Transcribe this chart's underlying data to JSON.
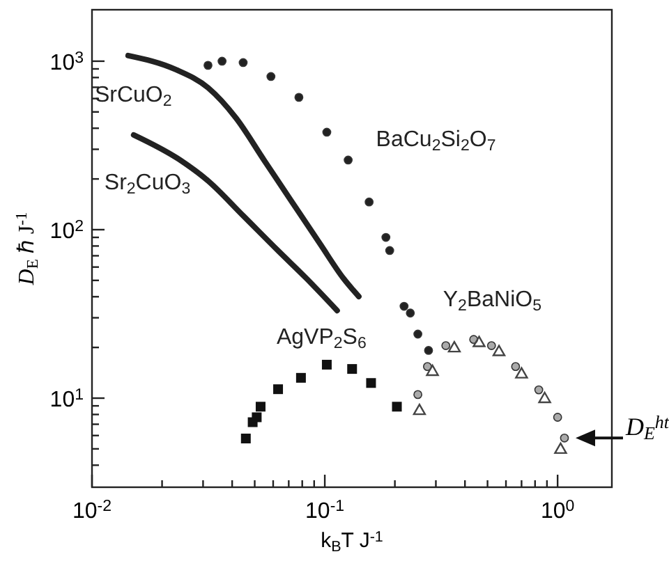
{
  "chart_data": {
    "type": "scatter",
    "xlabel": "k$_{B}$T J$^{-1}$",
    "ylabel": "D$_{E}$ ℏ J$^{-1}$",
    "log": "xy",
    "grid": false,
    "xlim": [
      0.01,
      1.71
    ],
    "ylim": [
      2.96,
      2020
    ],
    "xticks": [
      {
        "value": 0.01,
        "label": "10$^{-2}$"
      },
      {
        "value": 0.02,
        "label": null
      },
      {
        "value": 0.03,
        "label": null
      },
      {
        "value": 0.04,
        "label": null
      },
      {
        "value": 0.05,
        "label": null
      },
      {
        "value": 0.06,
        "label": null
      },
      {
        "value": 0.07,
        "label": null
      },
      {
        "value": 0.08,
        "label": null
      },
      {
        "value": 0.09,
        "label": null
      },
      {
        "value": 0.1,
        "label": "10$^{-1}$"
      },
      {
        "value": 0.2,
        "label": null
      },
      {
        "value": 0.3,
        "label": null
      },
      {
        "value": 0.4,
        "label": null
      },
      {
        "value": 0.5,
        "label": null
      },
      {
        "value": 0.6,
        "label": null
      },
      {
        "value": 0.7,
        "label": null
      },
      {
        "value": 0.8,
        "label": null
      },
      {
        "value": 0.9,
        "label": null
      },
      {
        "value": 1,
        "label": "10$^{0}$"
      }
    ],
    "yticks": [
      {
        "value": 4,
        "label": null
      },
      {
        "value": 5,
        "label": null
      },
      {
        "value": 6,
        "label": null
      },
      {
        "value": 7,
        "label": null
      },
      {
        "value": 8,
        "label": null
      },
      {
        "value": 9,
        "label": null
      },
      {
        "value": 10,
        "label": "10$^{1}$"
      },
      {
        "value": 20,
        "label": null
      },
      {
        "value": 30,
        "label": null
      },
      {
        "value": 40,
        "label": null
      },
      {
        "value": 50,
        "label": null
      },
      {
        "value": 60,
        "label": null
      },
      {
        "value": 70,
        "label": null
      },
      {
        "value": 80,
        "label": null
      },
      {
        "value": 90,
        "label": null
      },
      {
        "value": 100,
        "label": "10$^{2}$"
      },
      {
        "value": 200,
        "label": null
      },
      {
        "value": 300,
        "label": null
      },
      {
        "value": 400,
        "label": null
      },
      {
        "value": 500,
        "label": null
      },
      {
        "value": 600,
        "label": null
      },
      {
        "value": 700,
        "label": null
      },
      {
        "value": 800,
        "label": null
      },
      {
        "value": 900,
        "label": null
      },
      {
        "value": 1000,
        "label": "10$^{3}$"
      }
    ],
    "series": [
      {
        "name": "SrCuO$_{2}$",
        "type": "line",
        "color": "#222222",
        "x": [
          0.0143,
          0.0229,
          0.0315,
          0.0416,
          0.0548,
          0.0723,
          0.0953,
          0.12,
          0.14
        ],
        "values": [
          1080,
          892,
          696,
          459,
          259,
          146,
          82.6,
          51.6,
          40.1
        ]
      },
      {
        "name": "Sr$_{2}$CuO$_{3}$",
        "type": "line",
        "color": "#222222",
        "x": [
          0.0151,
          0.0239,
          0.0315,
          0.0446,
          0.063,
          0.0831,
          0.113
        ],
        "values": [
          365,
          259,
          195,
          121,
          75,
          51.6,
          33.1
        ]
      },
      {
        "name": "BaCu$_{2}$Si$_{2}$O$_{7}$",
        "type": "scatter",
        "marker": "circle",
        "color": "#222222",
        "x": [
          0.0315,
          0.0362,
          0.0446,
          0.0587,
          0.0774,
          0.102,
          0.126,
          0.155,
          0.183,
          0.19,
          0.219,
          0.233,
          0.251,
          0.279
        ],
        "values": [
          945,
          1000,
          981,
          811,
          610,
          379,
          259,
          146,
          90,
          75.2,
          35.1,
          32,
          24,
          19.2
        ]
      },
      {
        "name": "AgVP$_{2}$S$_{6}$",
        "type": "scatter",
        "marker": "square",
        "color": "#111111",
        "x": [
          0.0458,
          0.049,
          0.051,
          0.053,
          0.063,
          0.079,
          0.102,
          0.131,
          0.158,
          0.204
        ],
        "values": [
          5.76,
          7.2,
          7.7,
          8.9,
          11.3,
          13.2,
          15.8,
          14.9,
          12.3,
          8.9
        ]
      },
      {
        "name": "Y$_{2}$BaNiO$_{5}$",
        "type": "scatter",
        "marker": "circle",
        "color": "#aaaaaa",
        "x": [
          0.251,
          0.276,
          0.331,
          0.436,
          0.52,
          0.66,
          0.83,
          1.0,
          1.07
        ],
        "values": [
          10.5,
          15.4,
          20.5,
          22.3,
          20.5,
          15.4,
          11.2,
          7.7,
          5.8
        ]
      },
      {
        "marker": "triangle",
        "color": "#444444",
        "x": [
          0.255,
          0.29,
          0.36,
          0.46,
          0.56,
          0.7,
          0.88,
          1.03
        ],
        "values": [
          8.5,
          14.5,
          20,
          21.5,
          19,
          14,
          10,
          5
        ]
      }
    ],
    "annotations": [
      {
        "text": "D$_{E}$$^{ht}$",
        "x": 1.07,
        "y": 5.8
      }
    ]
  }
}
